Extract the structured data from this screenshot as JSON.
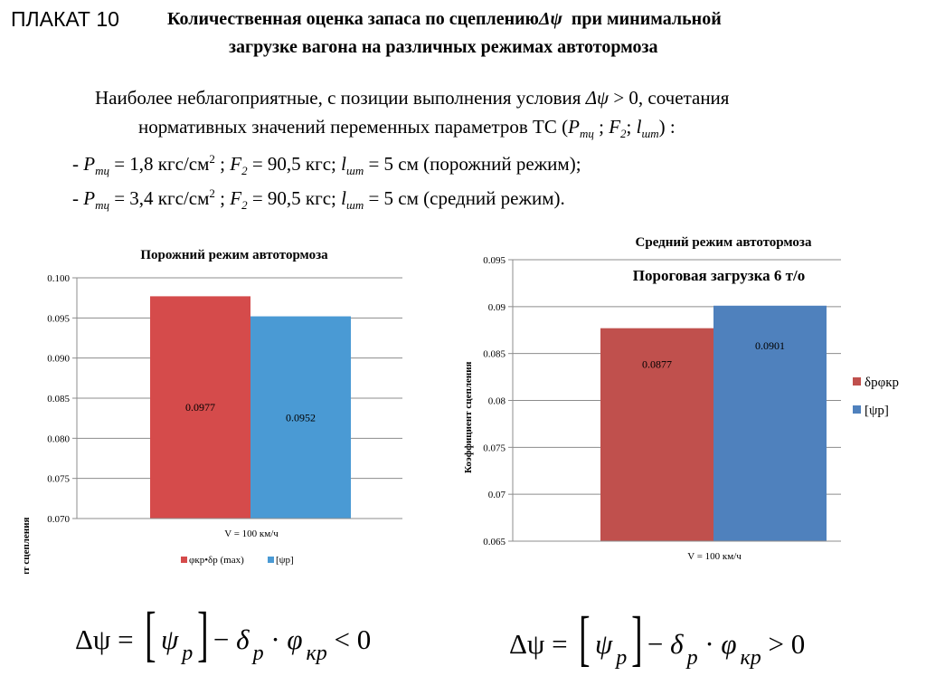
{
  "poster_label": "ПЛАКАТ 10",
  "title_line_1": "Количественная оценка запаса по сцеплению",
  "title_symbol": "Δψ",
  "title_line_1_tail": "при минимальной",
  "title_line_2": "загрузке вагона на различных режимах автотормоза",
  "intro": {
    "line1_a": "Наиболее неблагоприятные, с позиции выполнения условия ",
    "line1_sym": "Δψ",
    "line1_b": " > 0, сочетания",
    "line2_a": "нормативных значений переменных параметров ТС (",
    "line2_p": "P",
    "line2_p_sub": "тц",
    "line2_mid": " ; ",
    "line2_f": "F",
    "line2_f_sub": "2",
    "line2_sep": "; ",
    "line2_l": "l",
    "line2_l_sub": "шт",
    "line2_end": ") :"
  },
  "conditions": [
    {
      "dash": "- ",
      "p": "P",
      "p_sub": "тц",
      "p_val": " = 1,8 кгс/см",
      "p_sup": "2",
      "sep1": " ; ",
      "f": "F",
      "f_sub": "2",
      "f_val": " = 90,5 кгс; ",
      "l": "l",
      "l_sub": "шт",
      "l_val": " = 5 см (порожний режим);"
    },
    {
      "dash": "- ",
      "p": "P",
      "p_sub": "тц",
      "p_val": " = 3,4 кгс/см",
      "p_sup": "2",
      "sep1": " ; ",
      "f": "F",
      "f_sub": "2",
      "f_val": " = 90,5 кгс; ",
      "l": "l",
      "l_sub": "шт",
      "l_val": " = 5 см (средний режим)."
    }
  ],
  "chart_data": [
    {
      "type": "bar",
      "title": "Порожний режим автотормоза",
      "ylabel": "Коэффициент сцепления",
      "xlabel": "",
      "categories": [
        "V = 100 км/ч"
      ],
      "series": [
        {
          "name": "φкр•δр (max)",
          "values": [
            0.0977
          ],
          "color": "#d54b4b",
          "label": "0.0977"
        },
        {
          "name": "[ψр]",
          "values": [
            0.0952
          ],
          "color": "#4a9ad4",
          "label": "0.0952"
        }
      ],
      "ylim": [
        0.07,
        0.1
      ],
      "yticks": [
        "0.070",
        "0.075",
        "0.080",
        "0.085",
        "0.090",
        "0.095",
        "0.100"
      ],
      "ytick_values": [
        0.07,
        0.075,
        0.08,
        0.085,
        0.09,
        0.095,
        0.1
      ],
      "grid": true,
      "legend_position": "bottom"
    },
    {
      "type": "bar",
      "title": "Средний режим автотормоза",
      "subtitle": "Пороговая загрузка 6 т/о",
      "ylabel": "Коэффициент сцепления",
      "xlabel": "",
      "categories": [
        "V = 100 км/ч"
      ],
      "series": [
        {
          "name": "δрφкр",
          "values": [
            0.0877
          ],
          "color": "#c0504d",
          "label": "0.0877"
        },
        {
          "name": "[ψр]",
          "values": [
            0.0901
          ],
          "color": "#4f81bd",
          "label": "0.0901"
        }
      ],
      "ylim": [
        0.065,
        0.095
      ],
      "yticks": [
        "0.065",
        "0.07",
        "0.075",
        "0.08",
        "0.085",
        "0.09",
        "0.095"
      ],
      "ytick_values": [
        0.065,
        0.07,
        0.075,
        0.08,
        0.085,
        0.09,
        0.095
      ],
      "grid": true,
      "legend_position": "right"
    }
  ],
  "formulas": [
    {
      "lhs": "Δψ = ",
      "psi": "ψ",
      "psi_sub": "p",
      "minus": "− ",
      "delta": "δ",
      "delta_sub": "p",
      "dot": " · ",
      "phi": "φ",
      "phi_sub": "кр",
      "rel": " < 0"
    },
    {
      "lhs": "Δψ = ",
      "psi": "ψ",
      "psi_sub": "p",
      "minus": "− ",
      "delta": "δ",
      "delta_sub": "p",
      "dot": " · ",
      "phi": "φ",
      "phi_sub": "кр",
      "rel": " > 0"
    }
  ]
}
